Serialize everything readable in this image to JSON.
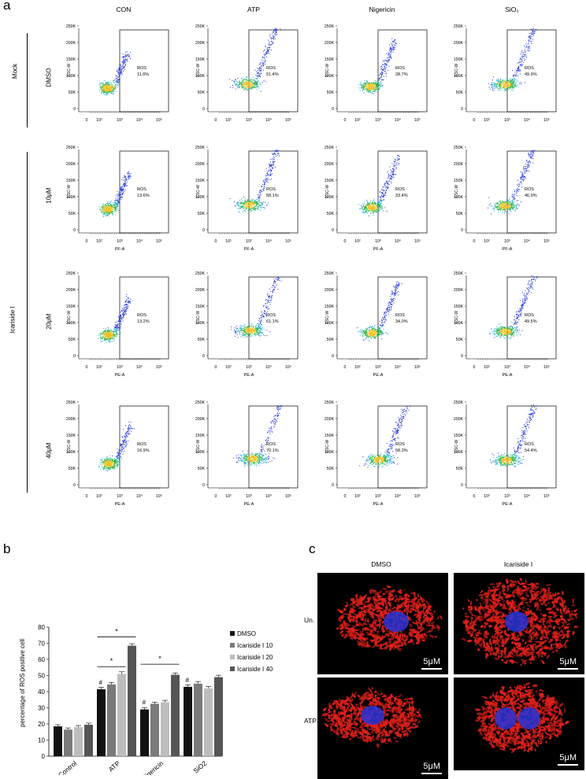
{
  "panels": {
    "a": "a",
    "b": "b",
    "c": "c"
  },
  "flow": {
    "columns": [
      "CON",
      "ATP",
      "Nigericin",
      "SiO₂"
    ],
    "rows": [
      {
        "label": "DMSO",
        "xlabel": "",
        "values": [
          "11.6%",
          "51.4%",
          "28.7%",
          "49.9%"
        ]
      },
      {
        "label": "10μM",
        "xlabel": "PF-A",
        "values": [
          "13.6%",
          "58.1%",
          "33.4%",
          "46.9%"
        ]
      },
      {
        "label": "20μM",
        "xlabel": "PE-A",
        "values": [
          "13.2%",
          "61.1%",
          "34.0%",
          "49.5%"
        ]
      },
      {
        "label": "40μM",
        "xlabel": "PE-A",
        "values": [
          "16.9%",
          "70.1%",
          "58.3%",
          "54.4%"
        ]
      }
    ],
    "group_mock": "Mock",
    "group_icariside": "Icariside I",
    "gate_label": "ROS",
    "ylabel": "FSC-W",
    "yticks": [
      "0",
      "50K",
      "100K",
      "150K",
      "200K",
      "250K"
    ],
    "xticks": [
      "0",
      "10²",
      "10³",
      "10⁴",
      "10⁵"
    ]
  },
  "chart_data": {
    "type": "bar",
    "categories": [
      "Control",
      "ATP",
      "Nigericin",
      "SiO2"
    ],
    "series": [
      {
        "name": "DMSO",
        "values": [
          18.5,
          41.5,
          29,
          43
        ],
        "color": "#111111"
      },
      {
        "name": "Icariside I 10",
        "values": [
          16.5,
          44.5,
          32.5,
          45
        ],
        "color": "#7a7a7a"
      },
      {
        "name": "Icariside I 20",
        "values": [
          18,
          51,
          33.5,
          42
        ],
        "color": "#bdbdbd"
      },
      {
        "name": "Icariside I 40",
        "values": [
          19.5,
          68.5,
          50.5,
          49
        ],
        "color": "#555555"
      }
    ],
    "errors": [
      [
        1,
        1.2,
        1,
        1.2
      ],
      [
        1,
        1.2,
        1,
        1.3
      ],
      [
        1,
        1.3,
        1.1,
        1.2
      ],
      [
        1,
        1.2,
        1.1,
        1.2
      ]
    ],
    "ylabel": "percentage of ROS positive cell",
    "xlabel": "",
    "ylim": [
      0,
      80
    ],
    "yticks": [
      "0",
      "10",
      "20",
      "30",
      "40",
      "50",
      "60",
      "70",
      "80"
    ],
    "legend_position": "top-right",
    "annotations": {
      "hash": "#",
      "star": "*"
    }
  },
  "micro": {
    "columns": [
      "DMSO",
      "Icariside I"
    ],
    "rows": [
      "Un.",
      "ATP"
    ],
    "scale": "5μM",
    "colors": {
      "mito": "#e0201a",
      "nucleus": "#2a34d8"
    }
  }
}
